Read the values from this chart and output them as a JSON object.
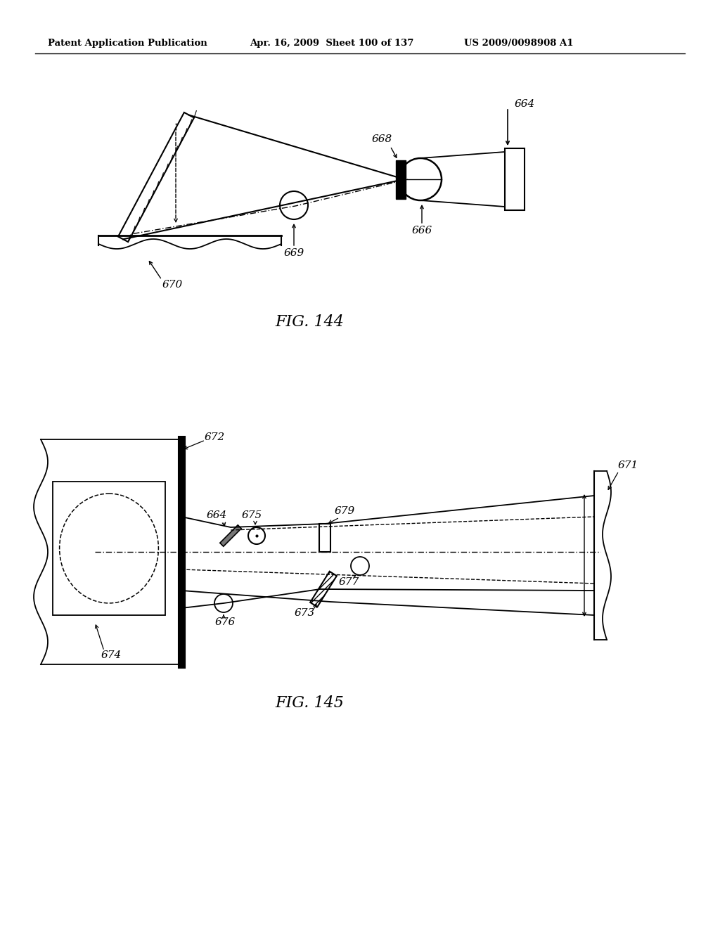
{
  "header_left": "Patent Application Publication",
  "header_mid": "Apr. 16, 2009  Sheet 100 of 137",
  "header_right": "US 2009/0098908 A1",
  "fig144_label": "FIG. 144",
  "fig145_label": "FIG. 145",
  "bg_color": "#ffffff",
  "line_color": "#000000"
}
